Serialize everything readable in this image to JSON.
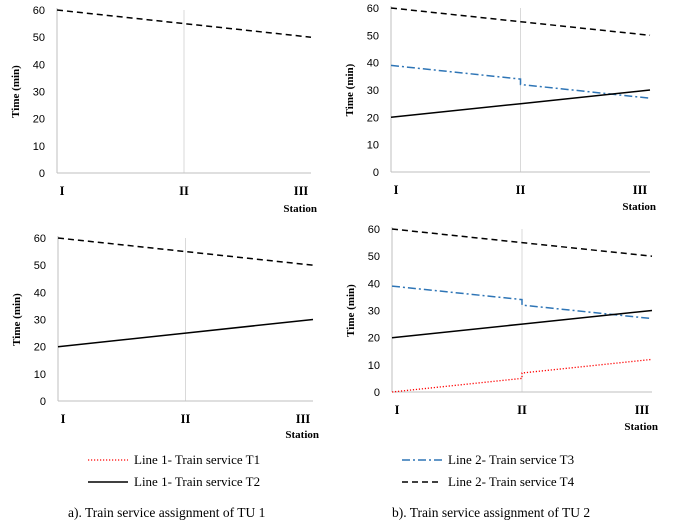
{
  "chart_data": [
    {
      "type": "line",
      "categories": [
        "I",
        "II",
        "III"
      ],
      "xlabel": "Station",
      "ylabel": "Time (min)",
      "ylim": [
        0,
        60
      ],
      "yticks": [
        0,
        10,
        20,
        30,
        40,
        50,
        60
      ],
      "series": [
        {
          "key": "T4",
          "color": "#000000",
          "dash": "dashed",
          "points": [
            [
              0,
              60
            ],
            [
              1,
              55
            ],
            [
              2,
              50
            ]
          ]
        }
      ]
    },
    {
      "type": "line",
      "categories": [
        "I",
        "II",
        "III"
      ],
      "xlabel": "Station",
      "ylabel": "Time (min)",
      "ylim": [
        0,
        60
      ],
      "yticks": [
        0,
        10,
        20,
        30,
        40,
        50,
        60
      ],
      "series": [
        {
          "key": "T4",
          "color": "#000000",
          "dash": "dashed",
          "points": [
            [
              0,
              60
            ],
            [
              1,
              55
            ],
            [
              2,
              50
            ]
          ]
        },
        {
          "key": "T3",
          "color": "#2e75b6",
          "dash": "dashdot",
          "points": [
            [
              0,
              39
            ],
            [
              1,
              34
            ],
            [
              1,
              32
            ],
            [
              2,
              27
            ]
          ]
        },
        {
          "key": "T2",
          "color": "#000000",
          "dash": "solid",
          "points": [
            [
              0,
              20
            ],
            [
              1,
              25
            ],
            [
              2,
              30
            ]
          ]
        }
      ]
    },
    {
      "type": "line",
      "categories": [
        "I",
        "II",
        "III"
      ],
      "xlabel": "Station",
      "ylabel": "Time (min)",
      "ylim": [
        0,
        60
      ],
      "yticks": [
        0,
        10,
        20,
        30,
        40,
        50,
        60
      ],
      "series": [
        {
          "key": "T4",
          "color": "#000000",
          "dash": "dashed",
          "points": [
            [
              0,
              60
            ],
            [
              1,
              55
            ],
            [
              2,
              50
            ]
          ]
        },
        {
          "key": "T2",
          "color": "#000000",
          "dash": "solid",
          "points": [
            [
              0,
              20
            ],
            [
              1,
              25
            ],
            [
              2,
              30
            ]
          ]
        }
      ]
    },
    {
      "type": "line",
      "categories": [
        "I",
        "II",
        "III"
      ],
      "xlabel": "Station",
      "ylabel": "Time (min)",
      "ylim": [
        0,
        60
      ],
      "yticks": [
        0,
        10,
        20,
        30,
        40,
        50,
        60
      ],
      "series": [
        {
          "key": "T4",
          "color": "#000000",
          "dash": "dashed",
          "points": [
            [
              0,
              60
            ],
            [
              1,
              55
            ],
            [
              2,
              50
            ]
          ]
        },
        {
          "key": "T3",
          "color": "#2e75b6",
          "dash": "dashdot",
          "points": [
            [
              0,
              39
            ],
            [
              1,
              34
            ],
            [
              1,
              32
            ],
            [
              2,
              27
            ]
          ]
        },
        {
          "key": "T2",
          "color": "#000000",
          "dash": "solid",
          "points": [
            [
              0,
              20
            ],
            [
              1,
              25
            ],
            [
              2,
              30
            ]
          ]
        },
        {
          "key": "T1",
          "color": "#ff0000",
          "dash": "dotted",
          "points": [
            [
              0,
              0
            ],
            [
              1,
              5
            ],
            [
              1,
              7
            ],
            [
              2,
              12
            ]
          ]
        }
      ]
    }
  ],
  "legend": {
    "T1": {
      "label": "Line 1- Train service T1",
      "color": "#ff0000",
      "dash": "dotted"
    },
    "T2": {
      "label": "Line 1- Train service T2",
      "color": "#000000",
      "dash": "solid"
    },
    "T3": {
      "label": "Line 2- Train service T3",
      "color": "#2e75b6",
      "dash": "dashdot"
    },
    "T4": {
      "label": "Line 2- Train service T4",
      "color": "#000000",
      "dash": "dashed"
    }
  },
  "captions": {
    "left": "a). Train service assignment of TU 1",
    "right": "b). Train service assignment of TU 2"
  }
}
